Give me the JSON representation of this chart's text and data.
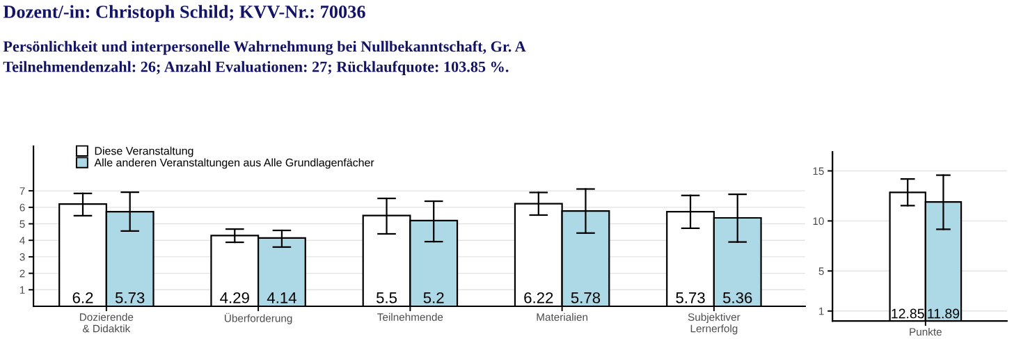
{
  "chart_data": [
    {
      "type": "bar",
      "title": "Dozent/-in: Christoph Schild; KVV-Nr.: 70036",
      "subtitle": "Persönlichkeit und interpersonelle Wahrnehmung bei Nullbekanntschaft, Gr. A\nTeilnehmendenzahl: 26; Anzahl Evaluationen: 27; Rücklaufquote: 103.85 %.",
      "categories": [
        "Dozierende\n& Didaktik",
        "Überforderung",
        "Teilnehmende",
        "Materialien",
        "Subjektiver\nLernerfolg"
      ],
      "series": [
        {
          "name": "Diese Veranstaltung",
          "color": "#ffffff",
          "values": [
            6.2,
            4.29,
            5.5,
            6.22,
            5.73
          ],
          "errors": [
            [
              5.49,
              6.84
            ],
            [
              3.88,
              4.68
            ],
            [
              4.39,
              6.54
            ],
            [
              5.53,
              6.9
            ],
            [
              4.73,
              6.72
            ]
          ]
        },
        {
          "name": "Alle anderen Veranstaltungen aus Alle Grundlagenfächer",
          "color": "#add8e6",
          "values": [
            5.73,
            4.14,
            5.2,
            5.78,
            5.36
          ],
          "errors": [
            [
              4.56,
              6.92
            ],
            [
              3.59,
              4.6
            ],
            [
              3.92,
              6.37
            ],
            [
              4.44,
              7.11
            ],
            [
              3.9,
              6.79
            ]
          ]
        }
      ],
      "ylim": [
        0,
        9.7
      ],
      "yticks": [
        1,
        2,
        3,
        4,
        5,
        6,
        7
      ],
      "grid": "y",
      "legend": "top left",
      "data_labels": true
    },
    {
      "type": "bar",
      "categories": [
        "Punkte"
      ],
      "series": [
        {
          "color": "#ffffff",
          "values": [
            12.85
          ],
          "errors": [
            [
              11.53,
              14.19
            ]
          ]
        },
        {
          "color": "#add8e6",
          "values": [
            11.89
          ],
          "errors": [
            [
              9.17,
              14.58
            ]
          ]
        }
      ],
      "ylim": [
        0,
        16.9
      ],
      "yticks": [
        1,
        5,
        10,
        15
      ],
      "grid": "y",
      "legend": false,
      "data_labels": true
    }
  ]
}
